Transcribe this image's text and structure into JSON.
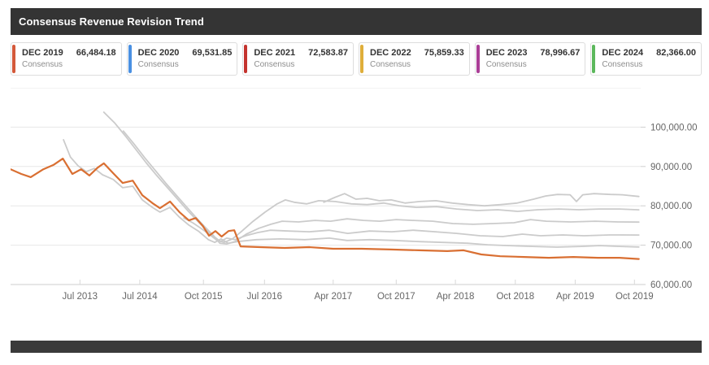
{
  "header": {
    "title": "Consensus Revenue Revision Trend"
  },
  "legend": {
    "sublabel": "Consensus",
    "items": [
      {
        "label": "DEC 2019",
        "value": "66,484.18",
        "accent": "#d4593a"
      },
      {
        "label": "DEC 2020",
        "value": "69,531.85",
        "accent": "#4a90e2"
      },
      {
        "label": "DEC 2021",
        "value": "72,583.87",
        "accent": "#c4332e"
      },
      {
        "label": "DEC 2022",
        "value": "75,859.33",
        "accent": "#dfae3a"
      },
      {
        "label": "DEC 2023",
        "value": "78,996.67",
        "accent": "#ab3f97"
      },
      {
        "label": "DEC 2024",
        "value": "82,366.00",
        "accent": "#5cb85c"
      }
    ]
  },
  "chart_data": {
    "type": "line",
    "title": "Consensus Revenue Revision Trend",
    "xlabel": "",
    "ylabel": "",
    "grid": "horizontal",
    "legend_position": "top",
    "x_ticks": [
      {
        "label": "Jul 2013",
        "pos": 0.11
      },
      {
        "label": "Jul 2014",
        "pos": 0.205
      },
      {
        "label": "Oct 2015",
        "pos": 0.306
      },
      {
        "label": "Jul 2016",
        "pos": 0.403
      },
      {
        "label": "Apr 2017",
        "pos": 0.512
      },
      {
        "label": "Oct 2017",
        "pos": 0.612
      },
      {
        "label": "Apr 2018",
        "pos": 0.706
      },
      {
        "label": "Oct 2018",
        "pos": 0.801
      },
      {
        "label": "Apr 2019",
        "pos": 0.896
      },
      {
        "label": "Oct 2019",
        "pos": 0.99
      }
    ],
    "y_axis": {
      "min": 60000,
      "max": 110000,
      "ticks": [
        {
          "value": 60000,
          "label": "60,000.00"
        },
        {
          "value": 70000,
          "label": "70,000.00"
        },
        {
          "value": 80000,
          "label": "80,000.00"
        },
        {
          "value": 90000,
          "label": "90,000.00"
        },
        {
          "value": 100000,
          "label": "100,000.00"
        }
      ]
    },
    "series": [
      {
        "name": "DEC 2020 Consensus",
        "end_value": 69531.85,
        "line_color": "#cbcbcb",
        "width": 1.8,
        "points": [
          [
            0.084,
            96800
          ],
          [
            0.095,
            92400
          ],
          [
            0.107,
            90200
          ],
          [
            0.12,
            88700
          ],
          [
            0.133,
            89500
          ],
          [
            0.146,
            87900
          ],
          [
            0.163,
            86700
          ],
          [
            0.178,
            84600
          ],
          [
            0.194,
            85000
          ],
          [
            0.209,
            81500
          ],
          [
            0.225,
            79600
          ],
          [
            0.237,
            78400
          ],
          [
            0.253,
            79600
          ],
          [
            0.268,
            77100
          ],
          [
            0.283,
            75100
          ],
          [
            0.298,
            73600
          ],
          [
            0.314,
            71400
          ],
          [
            0.324,
            70700
          ],
          [
            0.334,
            71600
          ],
          [
            0.345,
            70500
          ],
          [
            0.36,
            70900
          ],
          [
            0.39,
            71400
          ],
          [
            0.428,
            71600
          ],
          [
            0.467,
            71400
          ],
          [
            0.506,
            71800
          ],
          [
            0.534,
            71200
          ],
          [
            0.57,
            71400
          ],
          [
            0.609,
            71200
          ],
          [
            0.648,
            70900
          ],
          [
            0.686,
            70700
          ],
          [
            0.725,
            70500
          ],
          [
            0.757,
            70100
          ],
          [
            0.79,
            69900
          ],
          [
            0.828,
            69700
          ],
          [
            0.867,
            69500
          ],
          [
            0.906,
            69700
          ],
          [
            0.935,
            69900
          ],
          [
            0.966,
            69700
          ],
          [
            0.997,
            69531
          ]
        ]
      },
      {
        "name": "DEC 2021 Consensus",
        "end_value": 72583.87,
        "line_color": "#cbcbcb",
        "width": 1.8,
        "points": [
          [
            0.148,
            103800
          ],
          [
            0.165,
            101100
          ],
          [
            0.182,
            97800
          ],
          [
            0.199,
            94300
          ],
          [
            0.215,
            91000
          ],
          [
            0.232,
            87700
          ],
          [
            0.249,
            84600
          ],
          [
            0.266,
            81500
          ],
          [
            0.281,
            78800
          ],
          [
            0.297,
            76100
          ],
          [
            0.311,
            73800
          ],
          [
            0.323,
            72200
          ],
          [
            0.333,
            70900
          ],
          [
            0.343,
            71800
          ],
          [
            0.356,
            71400
          ],
          [
            0.373,
            72400
          ],
          [
            0.392,
            73200
          ],
          [
            0.412,
            73800
          ],
          [
            0.441,
            73600
          ],
          [
            0.474,
            73400
          ],
          [
            0.506,
            73800
          ],
          [
            0.535,
            73000
          ],
          [
            0.57,
            73600
          ],
          [
            0.605,
            73400
          ],
          [
            0.639,
            73800
          ],
          [
            0.674,
            73400
          ],
          [
            0.708,
            73000
          ],
          [
            0.745,
            72400
          ],
          [
            0.781,
            72200
          ],
          [
            0.812,
            72800
          ],
          [
            0.841,
            72400
          ],
          [
            0.876,
            72600
          ],
          [
            0.91,
            72400
          ],
          [
            0.951,
            72600
          ],
          [
            0.997,
            72584
          ]
        ]
      },
      {
        "name": "DEC 2022 Consensus",
        "end_value": 75859.33,
        "line_color": "#cbcbcb",
        "width": 1.8,
        "points": [
          [
            0.179,
            99000
          ],
          [
            0.196,
            95700
          ],
          [
            0.213,
            92200
          ],
          [
            0.23,
            88900
          ],
          [
            0.246,
            85800
          ],
          [
            0.263,
            82700
          ],
          [
            0.279,
            79800
          ],
          [
            0.294,
            77100
          ],
          [
            0.308,
            74700
          ],
          [
            0.321,
            72600
          ],
          [
            0.332,
            70500
          ],
          [
            0.343,
            70300
          ],
          [
            0.356,
            70900
          ],
          [
            0.374,
            72800
          ],
          [
            0.394,
            74300
          ],
          [
            0.413,
            75300
          ],
          [
            0.431,
            76100
          ],
          [
            0.457,
            75900
          ],
          [
            0.483,
            76300
          ],
          [
            0.508,
            76100
          ],
          [
            0.534,
            76700
          ],
          [
            0.56,
            76300
          ],
          [
            0.586,
            76100
          ],
          [
            0.612,
            76500
          ],
          [
            0.637,
            76300
          ],
          [
            0.67,
            76100
          ],
          [
            0.702,
            75500
          ],
          [
            0.734,
            75300
          ],
          [
            0.766,
            75500
          ],
          [
            0.799,
            75700
          ],
          [
            0.825,
            76500
          ],
          [
            0.85,
            76100
          ],
          [
            0.889,
            75900
          ],
          [
            0.928,
            76100
          ],
          [
            0.964,
            75900
          ],
          [
            0.997,
            75859
          ]
        ]
      },
      {
        "name": "DEC 2023 Consensus",
        "end_value": 78996.67,
        "line_color": "#cbcbcb",
        "width": 1.8,
        "points": [
          [
            0.275,
            76900
          ],
          [
            0.289,
            75700
          ],
          [
            0.302,
            74300
          ],
          [
            0.315,
            72800
          ],
          [
            0.326,
            71400
          ],
          [
            0.339,
            70700
          ],
          [
            0.352,
            71600
          ],
          [
            0.366,
            73400
          ],
          [
            0.385,
            76100
          ],
          [
            0.404,
            78400
          ],
          [
            0.423,
            80500
          ],
          [
            0.436,
            81500
          ],
          [
            0.45,
            80900
          ],
          [
            0.47,
            80500
          ],
          [
            0.489,
            81300
          ],
          [
            0.515,
            81100
          ],
          [
            0.541,
            80500
          ],
          [
            0.566,
            80300
          ],
          [
            0.592,
            80700
          ],
          [
            0.618,
            80000
          ],
          [
            0.644,
            79600
          ],
          [
            0.676,
            79800
          ],
          [
            0.708,
            79200
          ],
          [
            0.741,
            78800
          ],
          [
            0.773,
            79000
          ],
          [
            0.805,
            78600
          ],
          [
            0.837,
            79000
          ],
          [
            0.87,
            79200
          ],
          [
            0.902,
            79000
          ],
          [
            0.934,
            79200
          ],
          [
            0.966,
            79200
          ],
          [
            0.997,
            78997
          ]
        ]
      },
      {
        "name": "DEC 2024 Consensus",
        "end_value": 82366.0,
        "line_color": "#cbcbcb",
        "width": 1.8,
        "points": [
          [
            0.497,
            80900
          ],
          [
            0.514,
            82100
          ],
          [
            0.53,
            83100
          ],
          [
            0.548,
            81700
          ],
          [
            0.566,
            81900
          ],
          [
            0.585,
            81300
          ],
          [
            0.604,
            81500
          ],
          [
            0.626,
            80700
          ],
          [
            0.649,
            81100
          ],
          [
            0.675,
            81300
          ],
          [
            0.701,
            80700
          ],
          [
            0.726,
            80300
          ],
          [
            0.752,
            80000
          ],
          [
            0.778,
            80300
          ],
          [
            0.804,
            80700
          ],
          [
            0.83,
            81700
          ],
          [
            0.849,
            82500
          ],
          [
            0.868,
            82900
          ],
          [
            0.888,
            82800
          ],
          [
            0.898,
            81100
          ],
          [
            0.908,
            82800
          ],
          [
            0.926,
            83100
          ],
          [
            0.952,
            82900
          ],
          [
            0.971,
            82800
          ],
          [
            0.997,
            82366
          ]
        ]
      },
      {
        "name": "DEC 2019 Consensus",
        "end_value": 66484.18,
        "line_color": "#d96f32",
        "width": 2.2,
        "points": [
          [
            0.0,
            89300
          ],
          [
            0.017,
            88100
          ],
          [
            0.032,
            87300
          ],
          [
            0.052,
            89300
          ],
          [
            0.068,
            90400
          ],
          [
            0.083,
            92000
          ],
          [
            0.098,
            88100
          ],
          [
            0.112,
            89300
          ],
          [
            0.125,
            87700
          ],
          [
            0.138,
            89700
          ],
          [
            0.148,
            90800
          ],
          [
            0.164,
            88100
          ],
          [
            0.178,
            85800
          ],
          [
            0.194,
            86400
          ],
          [
            0.209,
            82700
          ],
          [
            0.225,
            80700
          ],
          [
            0.237,
            79400
          ],
          [
            0.253,
            81100
          ],
          [
            0.268,
            78400
          ],
          [
            0.283,
            76300
          ],
          [
            0.294,
            76900
          ],
          [
            0.305,
            74900
          ],
          [
            0.315,
            72400
          ],
          [
            0.325,
            73600
          ],
          [
            0.335,
            72200
          ],
          [
            0.346,
            73600
          ],
          [
            0.355,
            73800
          ],
          [
            0.365,
            69700
          ],
          [
            0.396,
            69500
          ],
          [
            0.435,
            69300
          ],
          [
            0.474,
            69500
          ],
          [
            0.512,
            69100
          ],
          [
            0.557,
            69100
          ],
          [
            0.603,
            68900
          ],
          [
            0.648,
            68700
          ],
          [
            0.693,
            68500
          ],
          [
            0.719,
            68700
          ],
          [
            0.747,
            67650
          ],
          [
            0.777,
            67200
          ],
          [
            0.815,
            67000
          ],
          [
            0.854,
            66800
          ],
          [
            0.893,
            67000
          ],
          [
            0.932,
            66800
          ],
          [
            0.966,
            66800
          ],
          [
            0.997,
            66484
          ]
        ]
      }
    ]
  }
}
